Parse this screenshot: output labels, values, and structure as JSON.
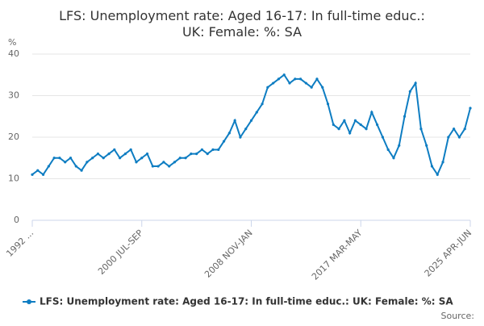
{
  "chart_data": {
    "type": "line",
    "title": "LFS: Unemployment rate: Aged 16-17: In full-time educ.: UK: Female: %: SA",
    "y_label": "%",
    "source_label": "Source:",
    "categories": [
      "1992 ...",
      null,
      null,
      null,
      null,
      null,
      null,
      null,
      null,
      null,
      null,
      null,
      null,
      null,
      null,
      null,
      null,
      null,
      null,
      null,
      "2000 JUL-SEP",
      null,
      null,
      null,
      null,
      null,
      null,
      null,
      null,
      null,
      null,
      null,
      null,
      null,
      null,
      null,
      null,
      null,
      null,
      null,
      "2008 NOV-JAN",
      null,
      null,
      null,
      null,
      null,
      null,
      null,
      null,
      null,
      null,
      null,
      null,
      null,
      null,
      null,
      null,
      null,
      null,
      null,
      "2017 MAR-MAY",
      null,
      null,
      null,
      null,
      null,
      null,
      null,
      null,
      null,
      null,
      null,
      null,
      null,
      null,
      null,
      null,
      null,
      null,
      null,
      "2025 APR-JUN"
    ],
    "series": [
      {
        "name": "LFS: Unemployment rate: Aged 16-17: In full-time educ.: UK: Female: %: SA",
        "color": "#0e7dc2",
        "values": [
          11,
          12,
          11,
          13,
          15,
          15,
          14,
          15,
          13,
          12,
          14,
          15,
          16,
          15,
          16,
          17,
          15,
          16,
          17,
          14,
          15,
          16,
          13,
          13,
          14,
          13,
          14,
          15,
          15,
          16,
          16,
          17,
          16,
          17,
          17,
          19,
          21,
          24,
          20,
          22,
          24,
          26,
          28,
          32,
          33,
          34,
          35,
          33,
          34,
          34,
          33,
          32,
          34,
          32,
          28,
          23,
          22,
          24,
          21,
          24,
          23,
          22,
          26,
          23,
          20,
          17,
          15,
          18,
          25,
          31,
          33,
          22,
          18,
          13,
          11,
          14,
          20,
          22,
          20,
          22,
          27
        ]
      }
    ],
    "ylim": [
      0,
      40
    ],
    "yticks": [
      0,
      10,
      20,
      30,
      40
    ],
    "grid": true
  }
}
